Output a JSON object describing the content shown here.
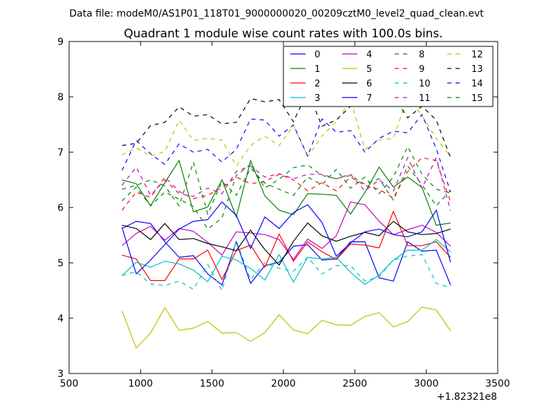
{
  "chart_data": {
    "type": "line",
    "suptitle": "Data file: modeM0/AS1P01_118T01_9000000020_00209cztM0_level2_quad_clean.evt",
    "title": "Quadrant 1 module wise count rates with 100.0s bins.",
    "xlabel": "",
    "ylabel": "",
    "x_offset_label": "+1.82321e8",
    "xlim": [
      500,
      3500
    ],
    "ylim": [
      3,
      9
    ],
    "xticks": [
      500,
      1000,
      1500,
      2000,
      2500,
      3000,
      3500
    ],
    "yticks": [
      3,
      4,
      5,
      6,
      7,
      8,
      9
    ],
    "x": [
      870,
      970,
      1070,
      1170,
      1270,
      1370,
      1470,
      1570,
      1670,
      1770,
      1870,
      1970,
      2070,
      2170,
      2270,
      2370,
      2470,
      2570,
      2670,
      2770,
      2870,
      2970,
      3070,
      3170
    ],
    "series": [
      {
        "name": "0",
        "color": "#0000ff",
        "dash": false,
        "values": [
          5.62,
          5.75,
          5.71,
          5.38,
          5.1,
          5.13,
          4.8,
          4.6,
          5.38,
          4.63,
          4.95,
          5.01,
          5.3,
          5.33,
          5.05,
          5.07,
          5.38,
          5.38,
          4.73,
          4.67,
          5.38,
          5.21,
          5.23,
          4.6
        ]
      },
      {
        "name": "1",
        "color": "#008000",
        "dash": false,
        "values": [
          6.5,
          6.43,
          6.03,
          6.45,
          6.85,
          5.92,
          6.01,
          6.5,
          5.83,
          6.85,
          6.21,
          5.95,
          5.87,
          6.25,
          6.24,
          6.22,
          5.88,
          6.27,
          6.73,
          6.37,
          6.55,
          6.36,
          5.68,
          5.72
        ]
      },
      {
        "name": "2",
        "color": "#ff0000",
        "dash": false,
        "values": [
          5.14,
          5.07,
          4.68,
          4.68,
          5.07,
          5.07,
          5.23,
          4.7,
          5.22,
          5.32,
          4.92,
          5.52,
          5.03,
          5.38,
          5.2,
          5.06,
          5.34,
          5.32,
          5.27,
          5.93,
          5.31,
          5.31,
          5.38,
          5.1
        ]
      },
      {
        "name": "3",
        "color": "#00bfbf",
        "dash": false,
        "values": [
          4.77,
          5.01,
          4.92,
          5.03,
          4.98,
          4.87,
          4.66,
          5.12,
          5.05,
          4.9,
          4.69,
          5.15,
          4.65,
          5.1,
          5.07,
          5.1,
          4.83,
          4.61,
          4.78,
          5.05,
          5.23,
          5.23,
          5.42,
          5.2
        ]
      },
      {
        "name": "4",
        "color": "#bf00bf",
        "dash": false,
        "values": [
          5.31,
          5.53,
          5.66,
          5.41,
          5.62,
          5.57,
          5.37,
          5.14,
          5.56,
          5.54,
          5.51,
          5.42,
          5.06,
          5.43,
          5.26,
          5.49,
          6.1,
          6.05,
          5.75,
          5.51,
          5.6,
          5.68,
          5.55,
          5.3
        ]
      },
      {
        "name": "5",
        "color": "#bfbf00",
        "dash": false,
        "values": [
          4.13,
          3.46,
          3.73,
          4.19,
          3.78,
          3.82,
          3.94,
          3.73,
          3.74,
          3.58,
          3.74,
          4.06,
          3.79,
          3.72,
          3.96,
          3.88,
          3.87,
          4.03,
          4.1,
          3.84,
          3.94,
          4.2,
          4.15,
          3.77
        ]
      },
      {
        "name": "6",
        "color": "#000000",
        "dash": false,
        "values": [
          5.68,
          5.62,
          5.42,
          5.71,
          5.42,
          5.44,
          5.35,
          5.29,
          5.22,
          5.59,
          5.24,
          4.96,
          5.39,
          5.72,
          5.49,
          5.39,
          5.48,
          5.55,
          5.49,
          5.75,
          5.56,
          5.51,
          5.53,
          5.61
        ]
      },
      {
        "name": "7",
        "color": "#0000ff",
        "dash": false,
        "values": [
          5.64,
          4.8,
          5.05,
          5.33,
          5.61,
          5.75,
          5.78,
          6.1,
          5.86,
          5.26,
          5.83,
          5.62,
          5.91,
          6.05,
          5.73,
          5.12,
          5.36,
          5.56,
          5.61,
          5.51,
          5.47,
          5.56,
          5.95,
          5.01
        ]
      },
      {
        "name": "8",
        "color": "#008000",
        "dash": true,
        "values": [
          6.12,
          6.37,
          6.03,
          6.28,
          6.15,
          6.02,
          5.61,
          5.81,
          6.58,
          6.78,
          6.35,
          6.51,
          6.72,
          6.77,
          6.58,
          6.52,
          6.58,
          6.42,
          6.52,
          6.13,
          6.75,
          6.41,
          6.03,
          6.31
        ]
      },
      {
        "name": "9",
        "color": "#ff0000",
        "dash": true,
        "values": [
          5.95,
          6.28,
          6.18,
          6.55,
          6.29,
          6.16,
          6.22,
          6.36,
          6.55,
          6.43,
          6.47,
          6.6,
          6.5,
          6.3,
          6.45,
          6.3,
          6.55,
          6.4,
          6.33,
          6.17,
          6.65,
          6.9,
          6.85,
          6.1
        ]
      },
      {
        "name": "10",
        "color": "#00bfbf",
        "dash": true,
        "values": [
          4.77,
          4.84,
          4.62,
          4.59,
          4.67,
          4.52,
          4.97,
          4.5,
          5.4,
          4.7,
          5.0,
          4.9,
          4.85,
          5.1,
          4.8,
          4.95,
          4.95,
          4.67,
          4.75,
          5.05,
          5.12,
          5.15,
          4.63,
          4.55
        ]
      },
      {
        "name": "11",
        "color": "#bf00bf",
        "dash": true,
        "values": [
          6.4,
          6.73,
          6.22,
          6.5,
          6.25,
          6.2,
          6.35,
          6.25,
          6.65,
          6.75,
          6.55,
          6.61,
          6.52,
          6.6,
          6.6,
          6.52,
          6.6,
          6.3,
          6.5,
          6.3,
          6.9,
          6.35,
          6.9,
          5.94
        ]
      },
      {
        "name": "12",
        "color": "#bfbf00",
        "dash": true,
        "values": [
          6.95,
          7.08,
          6.93,
          7.01,
          7.58,
          7.21,
          7.25,
          7.22,
          6.75,
          7.12,
          7.29,
          7.12,
          7.48,
          6.92,
          7.29,
          7.55,
          7.95,
          7.05,
          7.22,
          7.25,
          8.0,
          7.66,
          7.25,
          6.92
        ]
      },
      {
        "name": "13",
        "color": "#000000",
        "dash": true,
        "values": [
          7.12,
          7.16,
          7.48,
          7.54,
          7.82,
          7.65,
          7.68,
          7.51,
          7.54,
          7.97,
          7.91,
          7.95,
          7.55,
          8.1,
          7.47,
          7.58,
          7.83,
          7.94,
          7.85,
          8.02,
          7.62,
          7.83,
          7.58,
          6.9
        ]
      },
      {
        "name": "14",
        "color": "#0000ff",
        "dash": true,
        "values": [
          6.67,
          7.21,
          6.97,
          6.78,
          7.15,
          7.0,
          7.05,
          6.82,
          7.05,
          7.6,
          7.58,
          7.29,
          7.49,
          6.93,
          7.6,
          7.36,
          7.39,
          7.0,
          7.25,
          7.38,
          7.35,
          7.68,
          7.06,
          6.28
        ]
      },
      {
        "name": "15",
        "color": "#008000",
        "dash": true,
        "values": [
          6.33,
          6.4,
          6.5,
          6.39,
          6.03,
          6.82,
          5.88,
          6.47,
          6.22,
          6.71,
          6.44,
          6.33,
          6.22,
          6.55,
          6.41,
          6.69,
          6.35,
          6.55,
          6.25,
          6.55,
          7.1,
          6.6,
          6.33,
          6.26
        ]
      }
    ]
  }
}
